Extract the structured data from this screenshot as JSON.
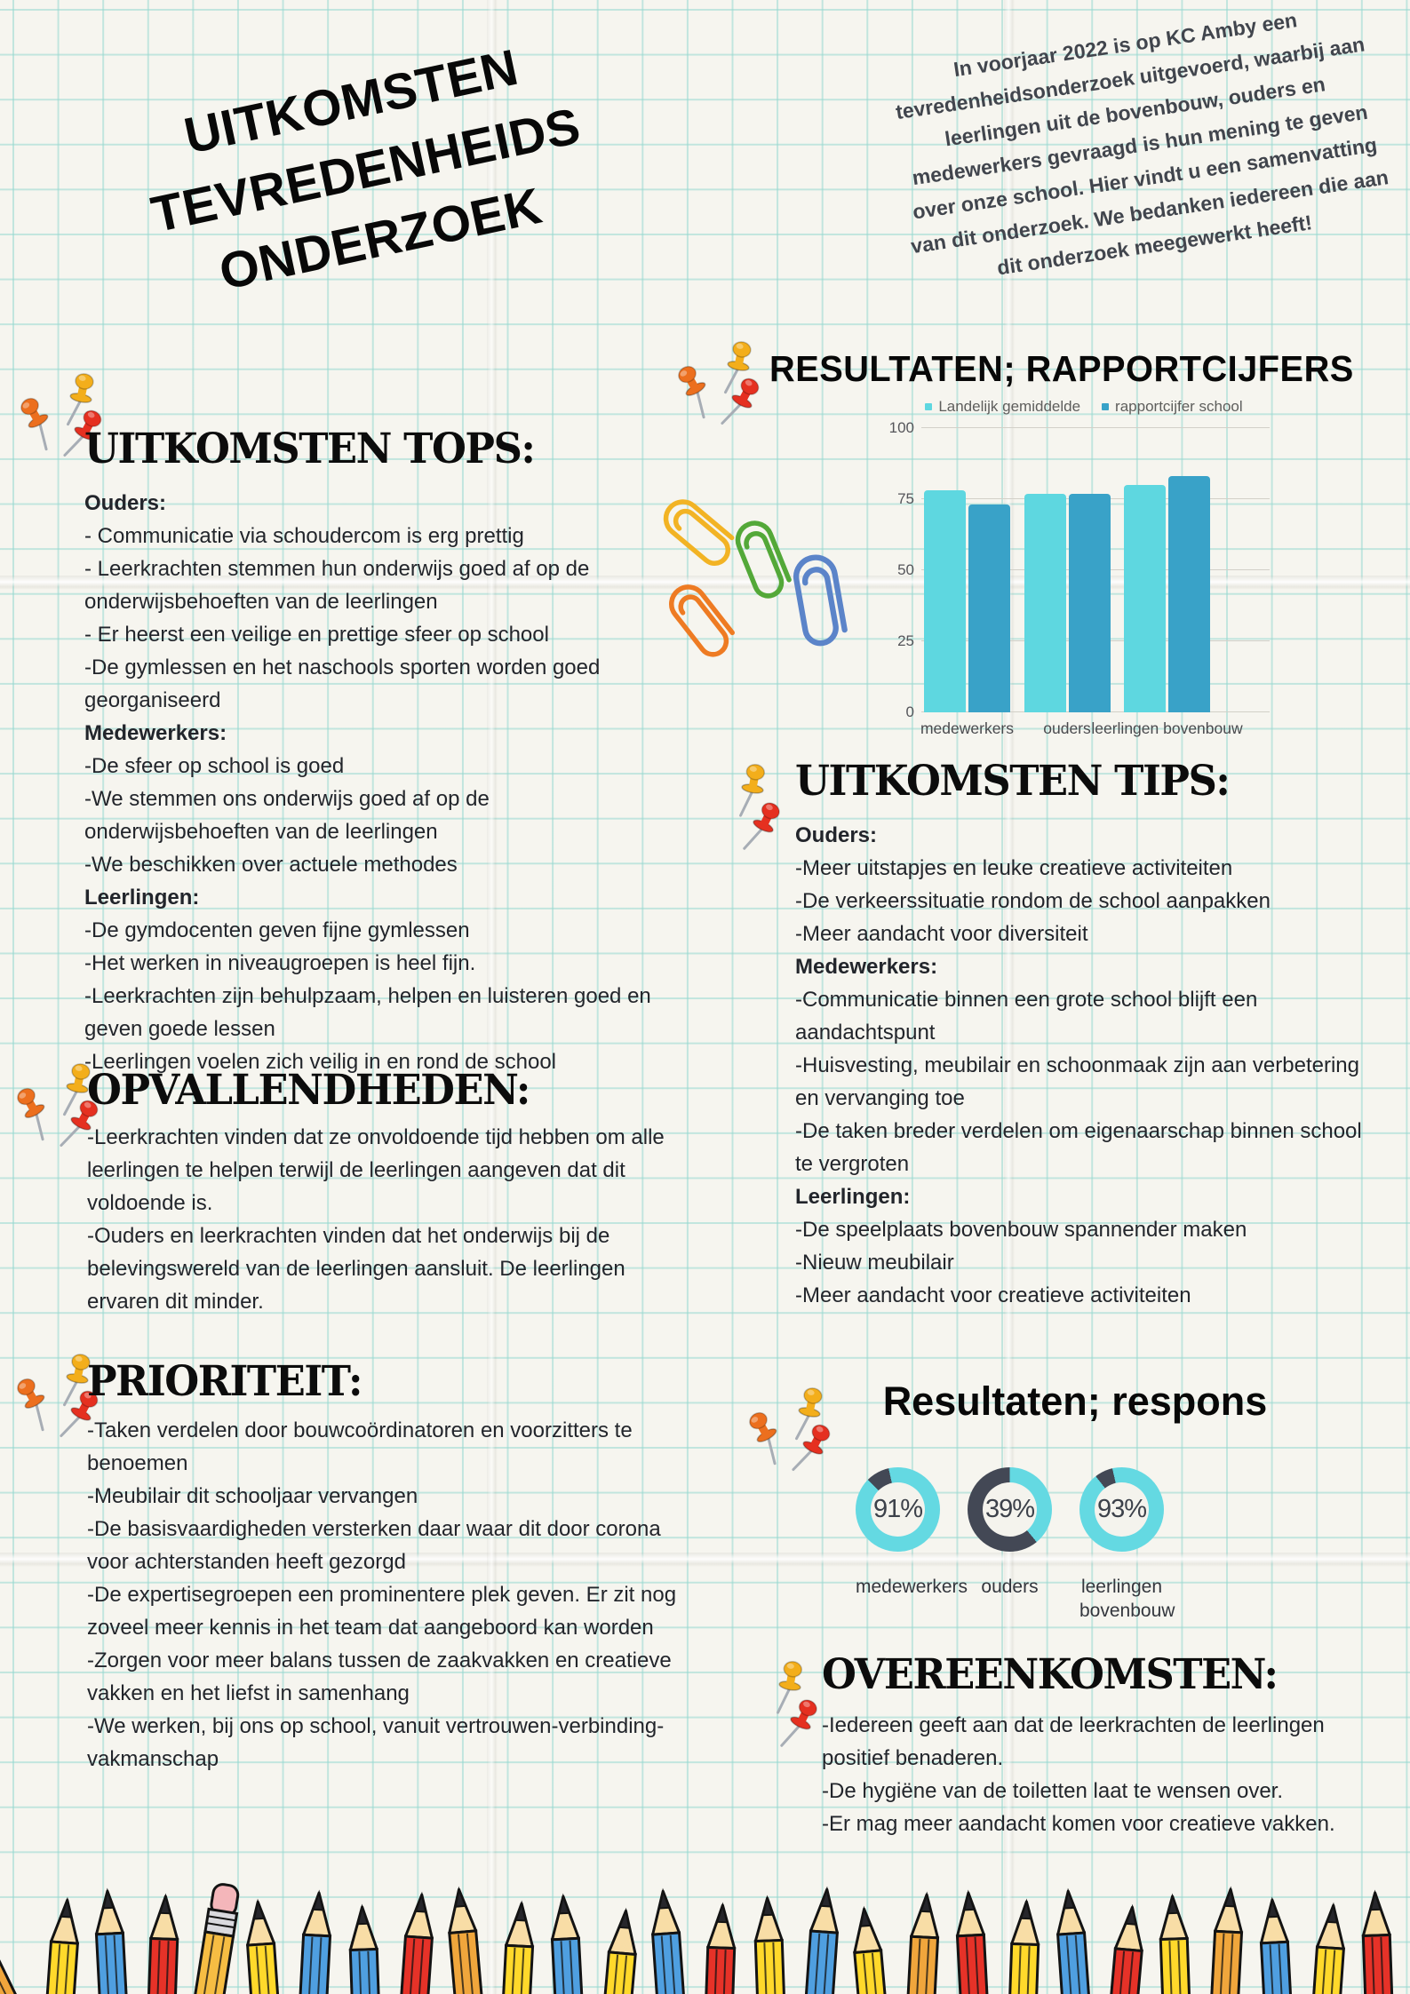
{
  "title": {
    "lines": [
      "UITKOMSTEN",
      "TEVREDENHEIDS",
      "ONDERZOEK"
    ]
  },
  "intro": {
    "text": "In voorjaar 2022 is op KC Amby een tevredenheidsonderzoek uitgevoerd, waarbij aan leerlingen uit de bovenbouw, ouders en medewerkers gevraagd is hun mening te geven over onze school. Hier vindt u een samenvatting van dit onderzoek. We bedanken iedereen die aan dit onderzoek meegewerkt heeft!"
  },
  "sections": {
    "tops": {
      "heading": "UITKOMSTEN TOPS:",
      "items": [
        {
          "t": "Ouders:",
          "k": "lead"
        },
        {
          "t": "- Communicatie via schoudercom is erg prettig"
        },
        {
          "t": "- Leerkrachten stemmen hun onderwijs goed af op de onderwijsbehoeften van de leerlingen"
        },
        {
          "t": "- Er heerst een veilige en prettige sfeer op school"
        },
        {
          "t": "-De gymlessen en het naschools sporten worden goed georganiseerd"
        },
        {
          "t": "Medewerkers:",
          "k": "lead"
        },
        {
          "t": "-De sfeer op school is goed"
        },
        {
          "t": "-We stemmen ons onderwijs goed af op de onderwijsbehoeften van de leerlingen"
        },
        {
          "t": "-We beschikken over actuele methodes"
        },
        {
          "t": "Leerlingen:",
          "k": "lead"
        },
        {
          "t": "-De gymdocenten geven fijne gymlessen"
        },
        {
          "t": "-Het werken in niveaugroepen is heel fijn."
        },
        {
          "t": "-Leerkrachten zijn behulpzaam, helpen en luisteren goed en geven goede lessen"
        },
        {
          "t": "-Leerlingen voelen zich veilig in en rond de school"
        }
      ]
    },
    "opvallendheden": {
      "heading": "OPVALLENDHEDEN:",
      "items": [
        {
          "t": "-Leerkrachten vinden dat ze onvoldoende tijd hebben om alle leerlingen te helpen terwijl de leerlingen aangeven dat dit voldoende is."
        },
        {
          "t": "-Ouders en leerkrachten vinden dat het onderwijs bij de belevingswereld van de leerlingen aansluit. De leerlingen ervaren dit minder."
        }
      ]
    },
    "prioriteit": {
      "heading": "PRIORITEIT:",
      "items": [
        {
          "t": "-Taken verdelen door bouwcoördinatoren en voorzitters te benoemen"
        },
        {
          "t": "-Meubilair dit schooljaar vervangen"
        },
        {
          "t": "-De basisvaardigheden versterken daar waar dit door corona voor achterstanden heeft gezorgd"
        },
        {
          "t": "-De expertisegroepen een prominentere plek geven. Er zit nog zoveel meer kennis in het team dat aangeboord kan worden"
        },
        {
          "t": "-Zorgen voor meer balans tussen de zaakvakken en creatieve vakken en het liefst in samenhang"
        },
        {
          "t": "-We werken, bij ons op school, vanuit vertrouwen-verbinding-vakmanschap"
        }
      ]
    },
    "tips": {
      "heading": "UITKOMSTEN TIPS:",
      "items": [
        {
          "t": "Ouders:",
          "k": "lead"
        },
        {
          "t": "-Meer uitstapjes en leuke creatieve activiteiten"
        },
        {
          "t": "-De verkeerssituatie rondom de school aanpakken"
        },
        {
          "t": "-Meer aandacht voor diversiteit"
        },
        {
          "t": "Medewerkers:",
          "k": "lead"
        },
        {
          "t": "-Communicatie binnen een grote school blijft een aandachtspunt"
        },
        {
          "t": "-Huisvesting, meubilair en schoonmaak zijn aan verbetering en vervanging toe"
        },
        {
          "t": "-De taken breder verdelen om eigenaarschap binnen school te vergroten"
        },
        {
          "t": "Leerlingen:",
          "k": "lead"
        },
        {
          "t": "-De speelplaats bovenbouw spannender maken"
        },
        {
          "t": "-Nieuw meubilair"
        },
        {
          "t": "-Meer aandacht voor creatieve activiteiten"
        }
      ]
    },
    "overeenkomsten": {
      "heading": "OVEREENKOMSTEN:",
      "items": [
        {
          "t": "-Iedereen geeft aan dat de leerkrachten de leerlingen positief benaderen."
        },
        {
          "t": "-De hygiëne van de toiletten laat te wensen over."
        },
        {
          "t": "-Er mag meer aandacht komen voor creatieve vakken."
        }
      ]
    }
  },
  "chart_data": [
    {
      "type": "bar",
      "title": "RESULTATEN; RAPPORTCIJFERS",
      "categories": [
        "medewerkers",
        "ouders",
        "leerlingen bovenbouw"
      ],
      "series": [
        {
          "name": "Landelijk gemiddelde",
          "color": "#5ed7e0",
          "values": [
            78,
            77,
            80
          ]
        },
        {
          "name": "rapportcijfer school",
          "color": "#39a2c8",
          "values": [
            73,
            77,
            83
          ]
        }
      ],
      "yticks": [
        0,
        25,
        50,
        75,
        100
      ],
      "ylim": [
        0,
        100
      ],
      "grid": true,
      "legend_position": "top"
    },
    {
      "type": "pie",
      "variant": "donut",
      "title": "Resultaten; respons",
      "items": [
        {
          "label": "medewerkers",
          "value": 91
        },
        {
          "label": "ouders",
          "value": 39
        },
        {
          "label": "leerlingen bovenbouw",
          "value": 93
        }
      ]
    }
  ],
  "colors": {
    "paper": "#f6f5ef",
    "grid": "#96d8d0",
    "cyan_light": "#5ed7e0",
    "teal": "#39a2c8",
    "donut_cyan": "#64d9e2",
    "donut_dark": "#434855",
    "ink": "#0c0c0c",
    "pin_yellow": "#f3ae1b",
    "pin_orange": "#ec6f1e",
    "pin_red": "#e53020"
  }
}
